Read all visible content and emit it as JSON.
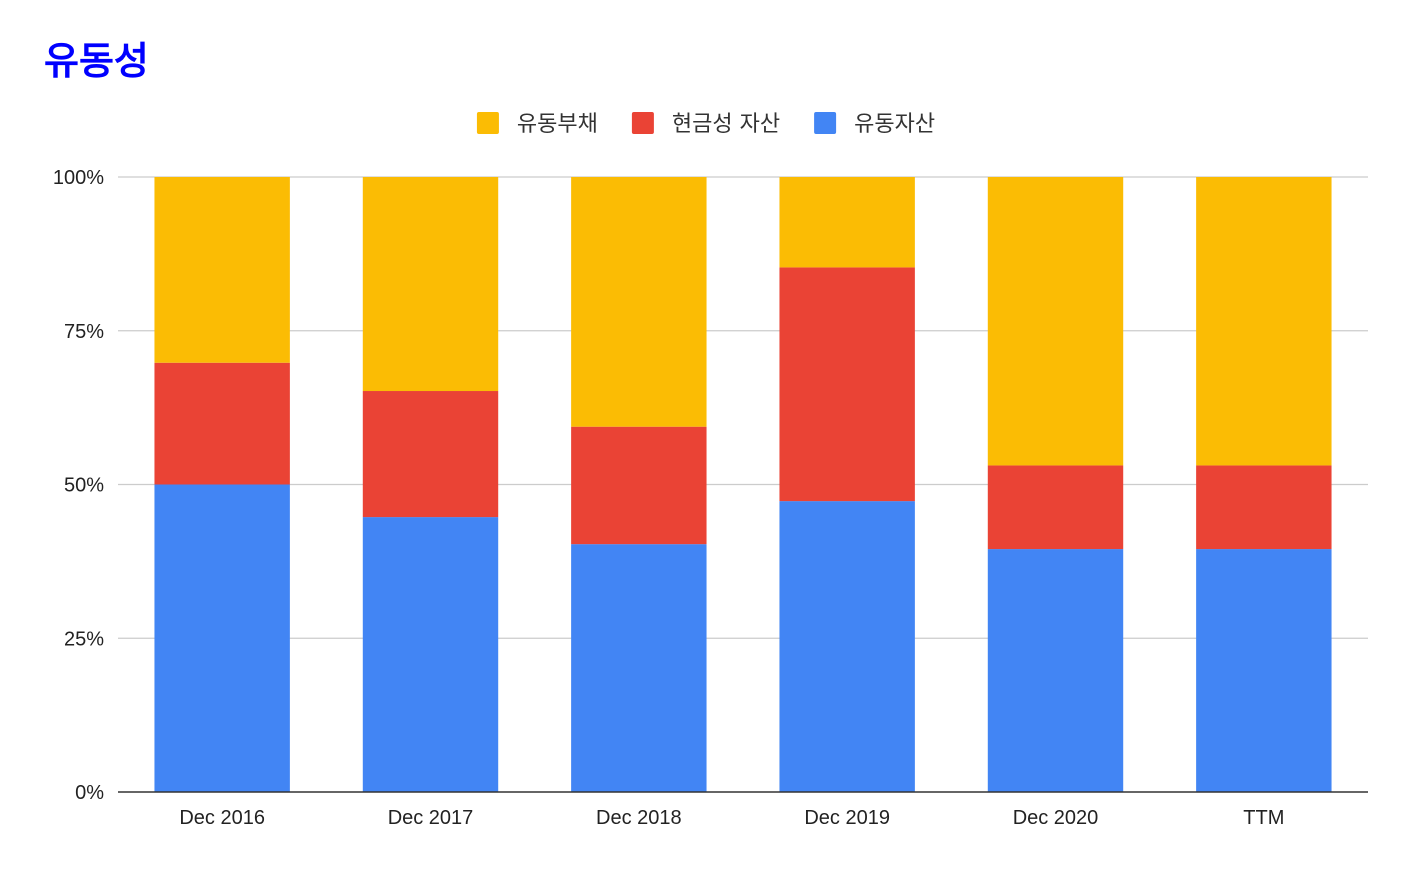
{
  "chart_data": {
    "type": "bar",
    "stacked": "percent",
    "title": "유동성",
    "title_color": "#0000ff",
    "categories": [
      "Dec 2016",
      "Dec 2017",
      "Dec 2018",
      "Dec 2019",
      "Dec 2020",
      "TTM"
    ],
    "series": [
      {
        "name": "유동자산",
        "color": "#4285f4",
        "values": [
          50,
          44.7,
          40.3,
          47.3,
          39.5,
          39.5
        ]
      },
      {
        "name": "현금성 자산",
        "color": "#ea4335",
        "values": [
          19.8,
          20.5,
          19.1,
          38.0,
          13.6,
          13.6
        ]
      },
      {
        "name": "유동부채",
        "color": "#fbbc04",
        "values": [
          30.2,
          34.8,
          40.6,
          14.7,
          46.9,
          46.9
        ]
      }
    ],
    "legend_order": [
      "유동부채",
      "현금성 자산",
      "유동자산"
    ],
    "legend_position": "top-center",
    "y_ticks": [
      "0%",
      "25%",
      "50%",
      "75%",
      "100%"
    ],
    "ylim": [
      0,
      100
    ],
    "grid": true
  }
}
